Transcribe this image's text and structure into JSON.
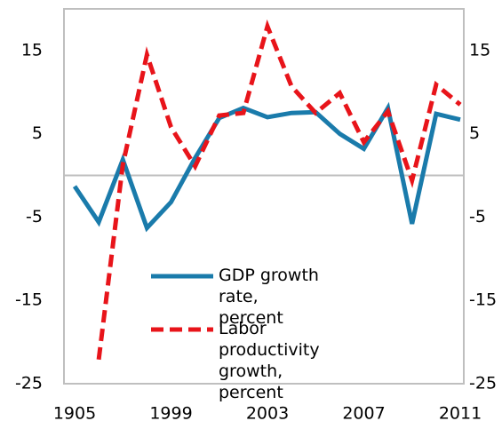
{
  "chart_data": {
    "type": "line",
    "categories": [
      "1905",
      null,
      null,
      null,
      "1999",
      null,
      null,
      null,
      "2003",
      null,
      null,
      null,
      "2007",
      null,
      null,
      null,
      "2011"
    ],
    "series": [
      {
        "name": "GDP growth rate, percent",
        "color": "#1a7bab",
        "dash": false,
        "values": [
          -1.3,
          -5.6,
          1.9,
          -6.3,
          -3.2,
          2.1,
          6.9,
          8.1,
          7.0,
          7.5,
          7.6,
          5.0,
          3.2,
          8.1,
          -5.8,
          7.4,
          6.7
        ]
      },
      {
        "name": "Labor productivity growth, percent",
        "color": "#e8141a",
        "dash": true,
        "values": [
          null,
          -22.1,
          1.3,
          14.5,
          5.8,
          1.1,
          7.2,
          7.5,
          17.9,
          10.7,
          7.5,
          9.9,
          4.0,
          7.7,
          -0.6,
          10.9,
          8.5
        ]
      }
    ],
    "ylim": [
      -25,
      20
    ],
    "yticks": [
      -25,
      -15,
      -5,
      5,
      15
    ]
  }
}
